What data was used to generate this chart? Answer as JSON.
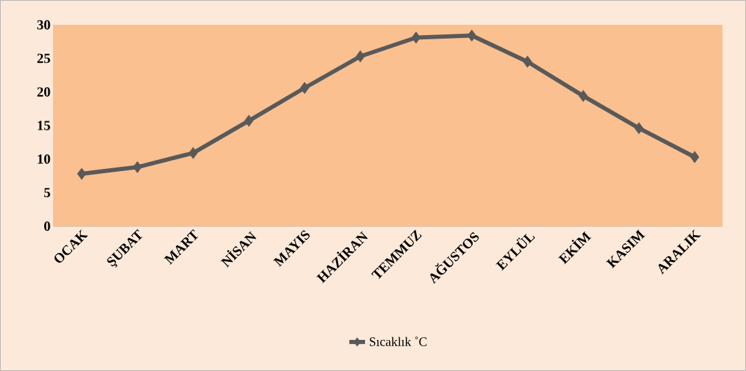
{
  "chart_data": {
    "type": "line",
    "categories": [
      "OCAK",
      "ŞUBAT",
      "MART",
      "NİSAN",
      "MAYIS",
      "HAZİRAN",
      "TEMMUZ",
      "AĞUSTOS",
      "EYLÜL",
      "EKİM",
      "KASIM",
      "ARALIK"
    ],
    "series": [
      {
        "name": "Sıcaklık ˚C",
        "color": "#595959",
        "values": [
          7.8,
          8.8,
          10.9,
          15.7,
          20.6,
          25.3,
          28.1,
          28.4,
          24.5,
          19.4,
          14.6,
          10.3
        ]
      }
    ],
    "ylim": [
      0,
      30
    ],
    "yticks": [
      0,
      5,
      10,
      15,
      20,
      25,
      30
    ],
    "legend": "bottom",
    "marker": "diamond",
    "line_style": "solid"
  }
}
